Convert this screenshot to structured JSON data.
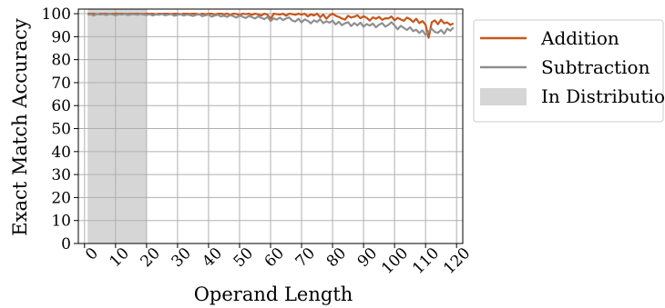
{
  "chart_data": {
    "type": "line",
    "xlabel": "Operand Length",
    "ylabel": "Exact Match Accuracy",
    "xlim": [
      -2,
      122
    ],
    "ylim": [
      0,
      102
    ],
    "xticks": [
      0,
      10,
      20,
      30,
      40,
      50,
      60,
      70,
      80,
      90,
      100,
      110,
      120
    ],
    "xtick_labels": [
      "0",
      "10",
      "20",
      "30",
      "40",
      "50",
      "60",
      "70",
      "80",
      "90",
      "100",
      "110",
      "120"
    ],
    "yticks": [
      0,
      10,
      20,
      30,
      40,
      50,
      60,
      70,
      80,
      90,
      100
    ],
    "ytick_labels": [
      "0",
      "10",
      "20",
      "30",
      "40",
      "50",
      "60",
      "70",
      "80",
      "90",
      "100"
    ],
    "grid": true,
    "legend_position": "outside-right-top",
    "shaded_region": {
      "name": "In Distribution",
      "x_range": [
        1,
        20
      ],
      "color": "#d6d6d6"
    },
    "series": [
      {
        "name": "Addition",
        "color": "#c8561a",
        "x": [
          1,
          2,
          3,
          4,
          5,
          6,
          7,
          8,
          9,
          10,
          11,
          12,
          13,
          14,
          15,
          16,
          17,
          18,
          19,
          20,
          21,
          22,
          23,
          24,
          25,
          26,
          27,
          28,
          29,
          30,
          31,
          32,
          33,
          34,
          35,
          36,
          37,
          38,
          39,
          40,
          41,
          42,
          43,
          44,
          45,
          46,
          47,
          48,
          49,
          50,
          51,
          52,
          53,
          54,
          55,
          56,
          57,
          58,
          59,
          60,
          61,
          62,
          63,
          64,
          65,
          66,
          67,
          68,
          69,
          70,
          71,
          72,
          73,
          74,
          75,
          76,
          77,
          78,
          79,
          80,
          81,
          82,
          83,
          84,
          85,
          86,
          87,
          88,
          89,
          90,
          91,
          92,
          93,
          94,
          95,
          96,
          97,
          98,
          99,
          100,
          101,
          102,
          103,
          104,
          105,
          106,
          107,
          108,
          109,
          110,
          111,
          112,
          113,
          114,
          115,
          116,
          117,
          118,
          119
        ],
        "values": [
          100,
          100,
          100,
          99.8,
          100,
          100,
          100,
          99.9,
          100,
          100,
          100,
          100,
          100,
          99.9,
          100,
          100,
          100,
          100,
          99.9,
          100,
          100,
          100,
          99.8,
          100,
          100,
          100,
          100,
          99.9,
          100,
          100,
          99.8,
          100,
          100,
          99.9,
          100,
          100,
          99.7,
          100,
          99.8,
          100,
          100,
          99.6,
          100,
          100,
          99.8,
          100,
          99.5,
          100,
          99.9,
          99.4,
          100,
          99.8,
          100,
          99.5,
          100,
          99.7,
          99.2,
          100,
          99.6,
          97.5,
          100,
          99.8,
          99.6,
          100,
          99.1,
          100,
          99.8,
          99.5,
          100,
          99.6,
          100,
          98.8,
          99.7,
          99.2,
          100,
          98.5,
          99.6,
          97.8,
          99.2,
          100,
          99.1,
          98.6,
          97.9,
          97.4,
          99.1,
          98.3,
          98.7,
          99.3,
          98.0,
          98.9,
          98.2,
          97.0,
          98.4,
          97.8,
          98.6,
          97.3,
          98.0,
          97.9,
          98.8,
          97.1,
          98.2,
          97.5,
          96.9,
          98.3,
          97.6,
          96.4,
          97.8,
          95.9,
          96.8,
          95.2,
          89.5,
          96.3,
          97.1,
          95.4,
          97.4,
          95.8,
          96.2,
          95.1,
          95.8
        ]
      },
      {
        "name": "Subtraction",
        "color": "#8f8f8f",
        "x": [
          1,
          2,
          3,
          4,
          5,
          6,
          7,
          8,
          9,
          10,
          11,
          12,
          13,
          14,
          15,
          16,
          17,
          18,
          19,
          20,
          21,
          22,
          23,
          24,
          25,
          26,
          27,
          28,
          29,
          30,
          31,
          32,
          33,
          34,
          35,
          36,
          37,
          38,
          39,
          40,
          41,
          42,
          43,
          44,
          45,
          46,
          47,
          48,
          49,
          50,
          51,
          52,
          53,
          54,
          55,
          56,
          57,
          58,
          59,
          60,
          61,
          62,
          63,
          64,
          65,
          66,
          67,
          68,
          69,
          70,
          71,
          72,
          73,
          74,
          75,
          76,
          77,
          78,
          79,
          80,
          81,
          82,
          83,
          84,
          85,
          86,
          87,
          88,
          89,
          90,
          91,
          92,
          93,
          94,
          95,
          96,
          97,
          98,
          99,
          100,
          101,
          102,
          103,
          104,
          105,
          106,
          107,
          108,
          109,
          110,
          111,
          112,
          113,
          114,
          115,
          116,
          117,
          118,
          119
        ],
        "values": [
          99.5,
          99.8,
          99.2,
          99.9,
          99.6,
          99.8,
          99.4,
          99.9,
          99.7,
          99.3,
          99.8,
          99.6,
          99.9,
          99.4,
          99.7,
          99.8,
          99.5,
          99.9,
          99.6,
          99.4,
          99.8,
          99.2,
          99.7,
          99.5,
          99.9,
          99.3,
          99.6,
          99.8,
          99.1,
          99.5,
          99.7,
          99.2,
          99.6,
          99.4,
          99.0,
          99.5,
          99.7,
          98.9,
          99.3,
          99.6,
          98.7,
          99.2,
          99.5,
          98.8,
          99.1,
          98.6,
          99.4,
          98.9,
          98.3,
          99.2,
          98.7,
          98.1,
          99.0,
          98.5,
          97.9,
          98.8,
          98.2,
          97.6,
          98.6,
          96.8,
          98.0,
          97.4,
          98.3,
          97.2,
          97.9,
          98.4,
          97.0,
          96.6,
          97.8,
          96.2,
          97.5,
          96.9,
          95.8,
          97.1,
          96.4,
          97.6,
          95.9,
          96.7,
          96.1,
          97.0,
          95.3,
          96.5,
          95.0,
          95.8,
          96.3,
          94.6,
          95.9,
          94.9,
          96.1,
          94.3,
          95.5,
          94.8,
          95.7,
          94.1,
          95.2,
          95.9,
          94.4,
          95.1,
          96.3,
          94.9,
          93.2,
          94.7,
          93.8,
          92.9,
          94.1,
          92.4,
          93.0,
          91.6,
          92.7,
          90.8,
          92.3,
          93.4,
          92.0,
          91.7,
          92.9,
          91.3,
          93.5,
          92.6,
          94.0
        ]
      }
    ]
  }
}
